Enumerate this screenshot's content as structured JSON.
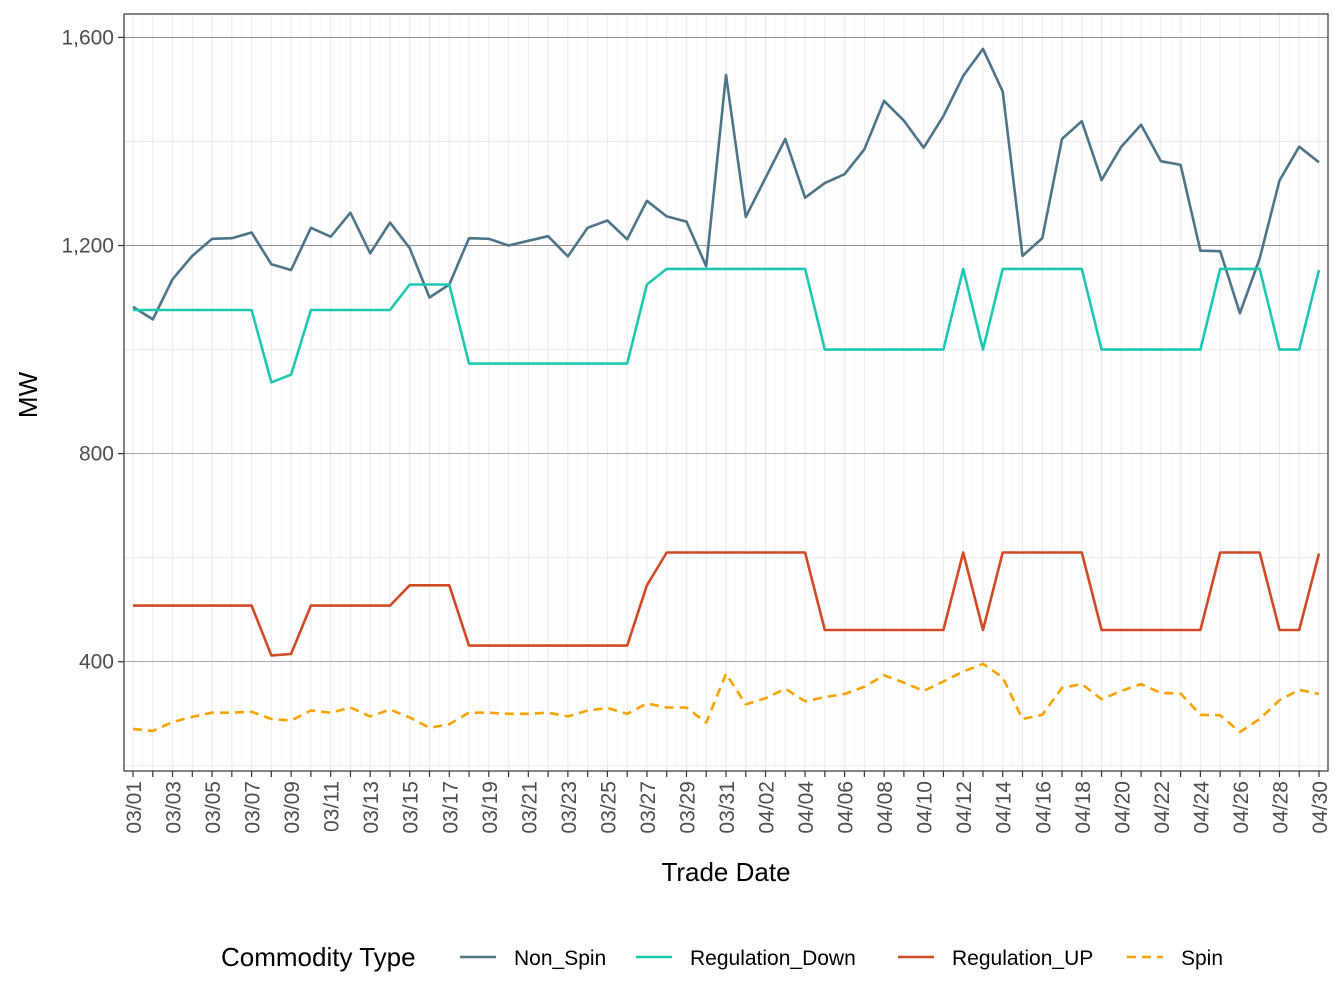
{
  "chart_data": {
    "type": "line",
    "xlabel": "Trade Date",
    "ylabel": "MW",
    "legend_title": "Commodity Type",
    "legend_position": "bottom",
    "grid": true,
    "ylim": [
      190,
      1645
    ],
    "yticks": [
      400,
      800,
      1200,
      1600
    ],
    "ytick_labels": [
      "400",
      "800",
      "1,200",
      "1,600"
    ],
    "x": [
      "03/01",
      "03/02",
      "03/03",
      "03/04",
      "03/05",
      "03/06",
      "03/07",
      "03/08",
      "03/09",
      "03/10",
      "03/11",
      "03/12",
      "03/13",
      "03/14",
      "03/15",
      "03/16",
      "03/17",
      "03/18",
      "03/19",
      "03/20",
      "03/21",
      "03/22",
      "03/23",
      "03/24",
      "03/25",
      "03/26",
      "03/27",
      "03/28",
      "03/29",
      "03/30",
      "03/31",
      "04/01",
      "04/02",
      "04/03",
      "04/04",
      "04/05",
      "04/06",
      "04/07",
      "04/08",
      "04/09",
      "04/10",
      "04/11",
      "04/12",
      "04/13",
      "04/14",
      "04/15",
      "04/16",
      "04/17",
      "04/18",
      "04/19",
      "04/20",
      "04/21",
      "04/22",
      "04/23",
      "04/24",
      "04/25",
      "04/26",
      "04/27",
      "04/28",
      "04/29",
      "04/30"
    ],
    "xtick_labels": [
      "03/01",
      "03/03",
      "03/05",
      "03/07",
      "03/09",
      "03/11",
      "03/13",
      "03/15",
      "03/17",
      "03/19",
      "03/21",
      "03/23",
      "03/25",
      "03/27",
      "03/29",
      "03/31",
      "04/02",
      "04/04",
      "04/06",
      "04/08",
      "04/10",
      "04/12",
      "04/14",
      "04/16",
      "04/18",
      "04/20",
      "04/22",
      "04/24",
      "04/26",
      "04/28",
      "04/30"
    ],
    "series": [
      {
        "name": "Non_Spin",
        "color": "#4e7487",
        "dash": "solid",
        "values": [
          1082,
          1058,
          1135,
          1180,
          1213,
          1214,
          1225,
          1164,
          1153,
          1234,
          1217,
          1263,
          1185,
          1244,
          1195,
          1100,
          1125,
          1214,
          1213,
          1200,
          1209,
          1218,
          1179,
          1234,
          1248,
          1212,
          1286,
          1256,
          1246,
          1160,
          1528,
          1255,
          1330,
          1405,
          1292,
          1320,
          1337,
          1385,
          1478,
          1440,
          1388,
          1449,
          1526,
          1578,
          1496,
          1180,
          1214,
          1405,
          1439,
          1326,
          1390,
          1432,
          1362,
          1355,
          1190,
          1189,
          1070,
          1175,
          1325,
          1390,
          1360
        ]
      },
      {
        "name": "Regulation_Down",
        "color": "#1ec8b0",
        "dash": "solid",
        "values": [
          1076,
          1076,
          1076,
          1076,
          1076,
          1076,
          1076,
          937,
          952,
          1076,
          1076,
          1076,
          1076,
          1076,
          1125,
          1125,
          1125,
          973,
          973,
          973,
          973,
          973,
          973,
          973,
          973,
          973,
          1125,
          1155,
          1155,
          1155,
          1155,
          1155,
          1155,
          1155,
          1155,
          1000,
          1000,
          1000,
          1000,
          1000,
          1000,
          1000,
          1155,
          1000,
          1155,
          1155,
          1155,
          1155,
          1155,
          1000,
          1000,
          1000,
          1000,
          1000,
          1000,
          1155,
          1155,
          1155,
          1000,
          1000,
          1153
        ]
      },
      {
        "name": "Regulation_UP",
        "color": "#d04a25",
        "dash": "solid",
        "values": [
          508,
          508,
          508,
          508,
          508,
          508,
          508,
          412,
          415,
          508,
          508,
          508,
          508,
          508,
          547,
          547,
          547,
          431,
          431,
          431,
          431,
          431,
          431,
          431,
          431,
          431,
          547,
          610,
          610,
          610,
          610,
          610,
          610,
          610,
          610,
          461,
          461,
          461,
          461,
          461,
          461,
          461,
          610,
          461,
          610,
          610,
          610,
          610,
          610,
          461,
          461,
          461,
          461,
          461,
          461,
          610,
          610,
          610,
          461,
          461,
          608
        ]
      },
      {
        "name": "Spin",
        "color": "#f5a300",
        "dash": "dashed",
        "values": [
          271,
          267,
          284,
          294,
          302,
          302,
          304,
          290,
          287,
          306,
          302,
          312,
          295,
          308,
          293,
          273,
          280,
          302,
          302,
          300,
          300,
          302,
          295,
          306,
          311,
          300,
          320,
          312,
          312,
          283,
          377,
          318,
          330,
          348,
          324,
          332,
          338,
          352,
          374,
          360,
          344,
          362,
          381,
          396,
          370,
          290,
          298,
          350,
          357,
          328,
          344,
          357,
          340,
          339,
          298,
          297,
          265,
          290,
          326,
          346,
          338
        ]
      }
    ]
  }
}
